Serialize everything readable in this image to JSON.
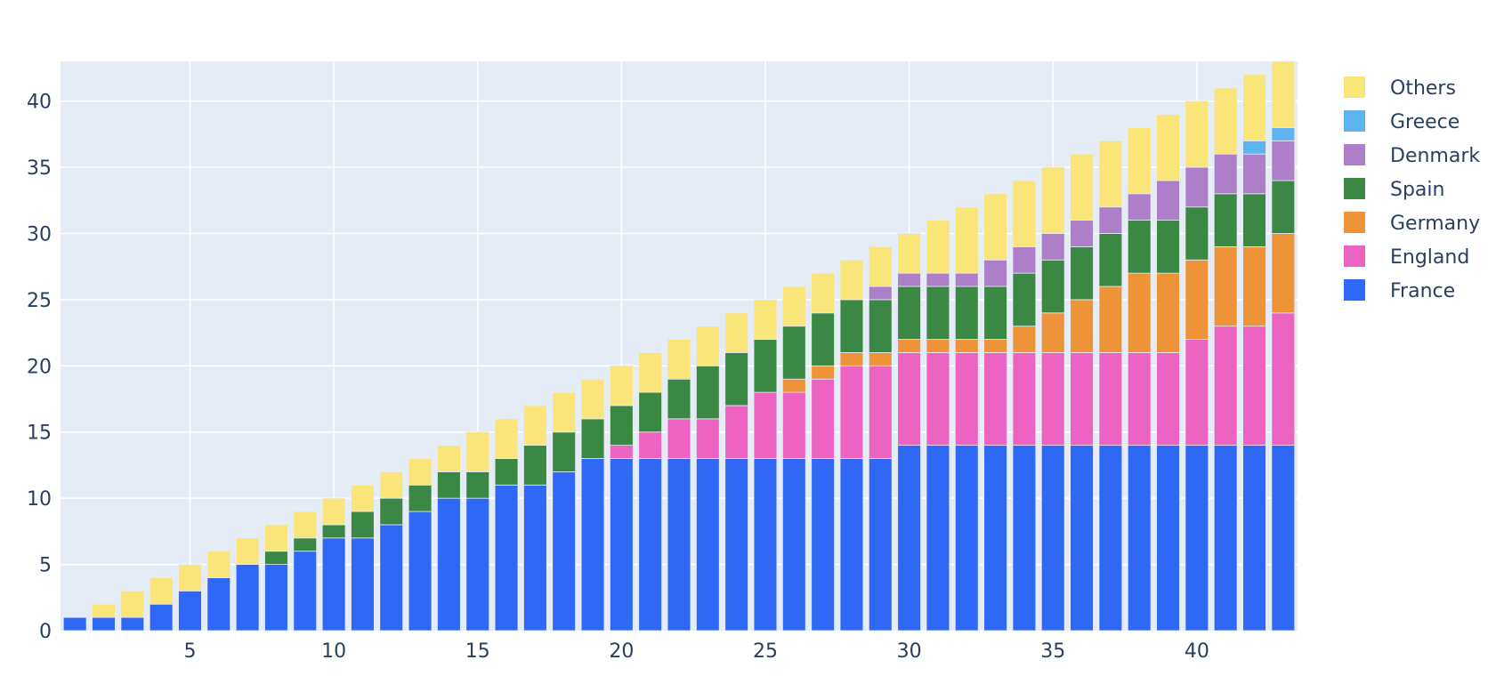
{
  "chart_data": {
    "type": "bar",
    "stacked": true,
    "x": [
      1,
      2,
      3,
      4,
      5,
      6,
      7,
      8,
      9,
      10,
      11,
      12,
      13,
      14,
      15,
      16,
      17,
      18,
      19,
      20,
      21,
      22,
      23,
      24,
      25,
      26,
      27,
      28,
      29,
      30,
      31,
      32,
      33,
      34,
      35,
      36,
      37,
      38,
      39,
      40,
      41,
      42,
      43
    ],
    "xticks": [
      5,
      10,
      15,
      20,
      25,
      30,
      35,
      40
    ],
    "yticks": [
      0,
      5,
      10,
      15,
      20,
      25,
      30,
      35,
      40
    ],
    "xlim": [
      0.5,
      43.5
    ],
    "ylim": [
      0,
      43
    ],
    "grid": true,
    "legend_position": "right",
    "series": [
      {
        "name": "France",
        "color": "#2e68f5",
        "values": [
          1,
          1,
          1,
          2,
          3,
          4,
          5,
          5,
          6,
          7,
          7,
          8,
          9,
          10,
          10,
          11,
          11,
          12,
          13,
          13,
          13,
          13,
          13,
          13,
          13,
          13,
          13,
          13,
          13,
          14,
          14,
          14,
          14,
          14,
          14,
          14,
          14,
          14,
          14,
          14,
          14,
          14,
          14
        ]
      },
      {
        "name": "England",
        "color": "#ec63c2",
        "values": [
          0,
          0,
          0,
          0,
          0,
          0,
          0,
          0,
          0,
          0,
          0,
          0,
          0,
          0,
          0,
          0,
          0,
          0,
          0,
          1,
          2,
          3,
          3,
          4,
          5,
          5,
          6,
          7,
          7,
          7,
          7,
          7,
          7,
          7,
          7,
          7,
          7,
          7,
          7,
          8,
          9,
          9,
          10
        ]
      },
      {
        "name": "Germany",
        "color": "#ef9338",
        "values": [
          0,
          0,
          0,
          0,
          0,
          0,
          0,
          0,
          0,
          0,
          0,
          0,
          0,
          0,
          0,
          0,
          0,
          0,
          0,
          0,
          0,
          0,
          0,
          0,
          0,
          1,
          1,
          1,
          1,
          1,
          1,
          1,
          1,
          2,
          3,
          4,
          5,
          6,
          6,
          6,
          6,
          6,
          6
        ]
      },
      {
        "name": "Spain",
        "color": "#3b8845",
        "values": [
          0,
          0,
          0,
          0,
          0,
          0,
          0,
          1,
          1,
          1,
          2,
          2,
          2,
          2,
          2,
          2,
          3,
          3,
          3,
          3,
          3,
          3,
          4,
          4,
          4,
          4,
          4,
          4,
          4,
          4,
          4,
          4,
          4,
          4,
          4,
          4,
          4,
          4,
          4,
          4,
          4,
          4,
          4
        ]
      },
      {
        "name": "Denmark",
        "color": "#ad7fc8",
        "values": [
          0,
          0,
          0,
          0,
          0,
          0,
          0,
          0,
          0,
          0,
          0,
          0,
          0,
          0,
          0,
          0,
          0,
          0,
          0,
          0,
          0,
          0,
          0,
          0,
          0,
          0,
          0,
          0,
          1,
          1,
          1,
          1,
          2,
          2,
          2,
          2,
          2,
          2,
          3,
          3,
          3,
          3,
          3
        ]
      },
      {
        "name": "Greece",
        "color": "#5fb4f0",
        "values": [
          0,
          0,
          0,
          0,
          0,
          0,
          0,
          0,
          0,
          0,
          0,
          0,
          0,
          0,
          0,
          0,
          0,
          0,
          0,
          0,
          0,
          0,
          0,
          0,
          0,
          0,
          0,
          0,
          0,
          0,
          0,
          0,
          0,
          0,
          0,
          0,
          0,
          0,
          0,
          0,
          0,
          1,
          1
        ]
      },
      {
        "name": "Others",
        "color": "#fae57a",
        "values": [
          0,
          1,
          2,
          2,
          2,
          2,
          2,
          2,
          2,
          2,
          2,
          2,
          2,
          2,
          3,
          3,
          3,
          3,
          3,
          3,
          3,
          3,
          3,
          3,
          3,
          3,
          3,
          3,
          3,
          3,
          4,
          5,
          5,
          5,
          5,
          5,
          5,
          5,
          5,
          5,
          5,
          5,
          5
        ]
      }
    ]
  }
}
